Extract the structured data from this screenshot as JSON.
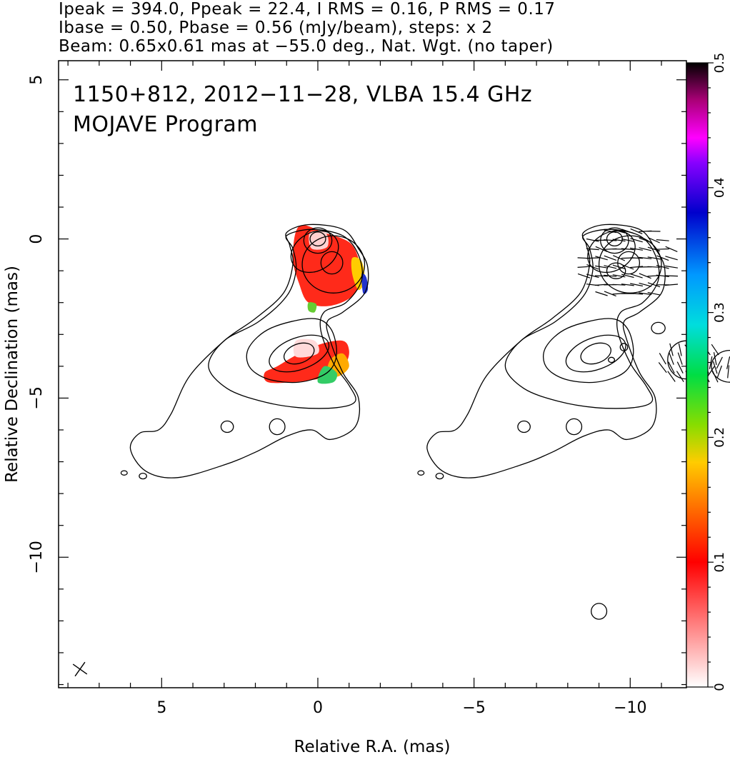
{
  "chart_data": {
    "type": "contour_map",
    "header_lines": [
      "Ipeak = 394.0, Ppeak = 22.4, I RMS = 0.16, P RMS = 0.17",
      "Ibase = 0.50, Pbase = 0.56 (mJy/beam), steps: x 2",
      "Beam: 0.65x0.61 mas at −55.0 deg., Nat. Wgt. (no taper)"
    ],
    "annotation_lines": [
      "1150+812, 2012−11−28, VLBA 15.4 GHz",
      "MOJAVE Program"
    ],
    "xlabel": "Relative R.A. (mas)",
    "ylabel": "Relative Declination (mas)",
    "xlim": [
      8.3,
      -11.8
    ],
    "ylim": [
      -14.1,
      5.6
    ],
    "x_ticks": [
      {
        "value": 5,
        "label": "5"
      },
      {
        "value": 0,
        "label": "0"
      },
      {
        "value": -5,
        "label": "−5"
      },
      {
        "value": -10,
        "label": "−10"
      }
    ],
    "y_ticks": [
      {
        "value": 5,
        "label": "5"
      },
      {
        "value": 0,
        "label": "0"
      },
      {
        "value": -5,
        "label": "−5"
      },
      {
        "value": -10,
        "label": "−10"
      }
    ],
    "colorbar": {
      "range": [
        0,
        0.5
      ],
      "ticks": [
        {
          "value": 0,
          "label": "0"
        },
        {
          "value": 0.1,
          "label": "0.1"
        },
        {
          "value": 0.2,
          "label": "0.2"
        },
        {
          "value": 0.3,
          "label": "0.3"
        },
        {
          "value": 0.4,
          "label": "0.4"
        },
        {
          "value": 0.5,
          "label": "0.5"
        }
      ]
    },
    "beam": {
      "major_mas": 0.65,
      "minor_mas": 0.61,
      "pa_deg": -55.0
    },
    "panels": [
      {
        "name": "left-panel",
        "ra_offset": 0.0,
        "fill": "fractional polarization",
        "vectors": false
      },
      {
        "name": "right-panel",
        "ra_offset": -9.5,
        "fill": "none",
        "vectors": true
      }
    ],
    "core_position": [
      0.0,
      0.0
    ],
    "colors": {
      "frame": "#000000",
      "contour": "#000000",
      "background": "#ffffff"
    }
  }
}
